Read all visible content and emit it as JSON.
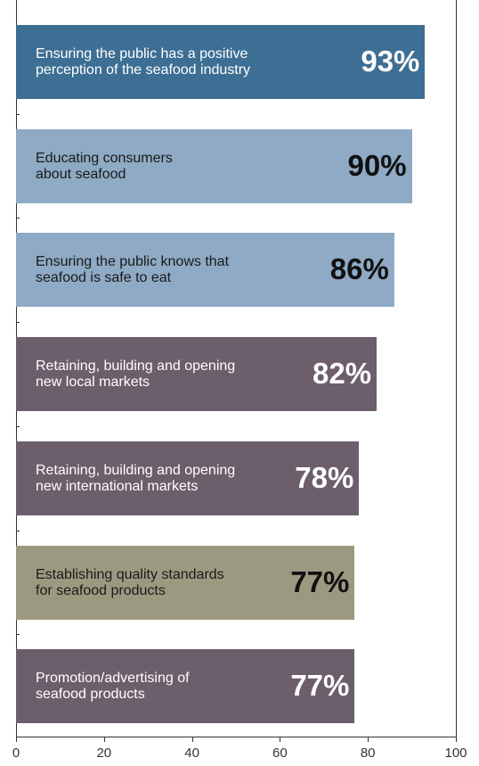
{
  "chart_data": {
    "type": "barh",
    "categories": [
      "Ensuring the public has a positive\nperception of the seafood industry",
      "Educating consumers\nabout seafood",
      "Ensuring the public knows that\nseafood is safe to eat",
      "Retaining, building and opening\nnew local markets",
      "Retaining, building and opening\nnew international markets",
      "Establishing quality standards\nfor seafood products",
      "Promotion/advertising of\nseafood products"
    ],
    "values": [
      93,
      90,
      86,
      82,
      78,
      77,
      77
    ],
    "value_labels": [
      "93%",
      "90%",
      "86%",
      "82%",
      "78%",
      "77%",
      "77%"
    ],
    "colors": [
      "#3d6e93",
      "#8eaac4",
      "#8eaac4",
      "#6c5e6b",
      "#6c5e6b",
      "#9b9a80",
      "#6c5e6b"
    ],
    "label_colors": [
      "#ffffff",
      "#1a1a1a",
      "#1a1a1a",
      "#ffffff",
      "#ffffff",
      "#1a1a1a",
      "#ffffff"
    ],
    "xlim": [
      0,
      100
    ],
    "xticks": [
      0,
      20,
      40,
      60,
      80,
      100
    ]
  }
}
